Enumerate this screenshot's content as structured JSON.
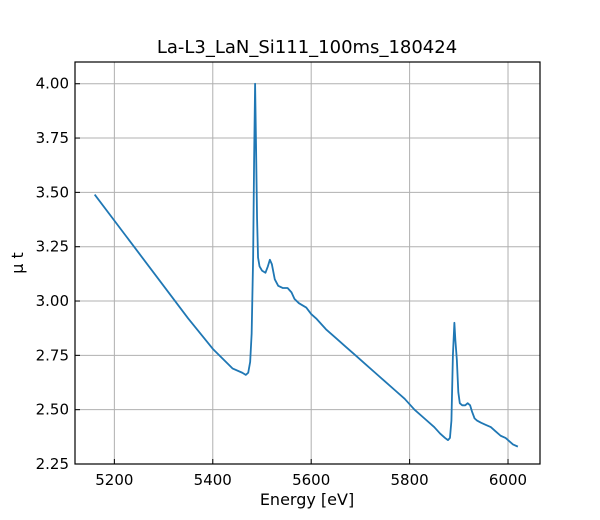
{
  "chart_data": {
    "type": "line",
    "title": "La-L3_LaN_Si111_100ms_180424",
    "xlabel": "Energy [eV]",
    "ylabel": "μ t",
    "xlim": [
      5120,
      6065
    ],
    "ylim": [
      2.25,
      4.1
    ],
    "xticks": [
      5200,
      5400,
      5600,
      5800,
      6000
    ],
    "yticks": [
      2.25,
      2.5,
      2.75,
      3.0,
      3.25,
      3.5,
      3.75,
      4.0
    ],
    "xtick_labels": [
      "5200",
      "5400",
      "5600",
      "5800",
      "6000"
    ],
    "ytick_labels": [
      "2.25",
      "2.50",
      "2.75",
      "3.00",
      "3.25",
      "3.50",
      "3.75",
      "4.00"
    ],
    "grid": true,
    "line_color": "#1f77b4",
    "series": [
      {
        "x": [
          5160,
          5200,
          5250,
          5300,
          5350,
          5400,
          5440,
          5460,
          5467,
          5472,
          5476,
          5479,
          5482,
          5484,
          5486,
          5488,
          5490,
          5492,
          5495,
          5500,
          5507,
          5512,
          5516,
          5520,
          5526,
          5533,
          5542,
          5552,
          5560,
          5566,
          5575,
          5590,
          5600,
          5610,
          5630,
          5650,
          5670,
          5690,
          5710,
          5730,
          5750,
          5770,
          5790,
          5810,
          5830,
          5850,
          5862,
          5872,
          5878,
          5882,
          5885,
          5888,
          5891,
          5893,
          5896,
          5899,
          5902,
          5907,
          5913,
          5918,
          5923,
          5927,
          5932,
          5937,
          5945,
          5955,
          5965,
          5975,
          5985,
          5995,
          6010,
          6020
        ],
        "y": [
          3.49,
          3.37,
          3.22,
          3.07,
          2.92,
          2.78,
          2.69,
          2.67,
          2.66,
          2.67,
          2.72,
          2.85,
          3.2,
          3.65,
          4.0,
          3.7,
          3.38,
          3.2,
          3.16,
          3.14,
          3.13,
          3.16,
          3.19,
          3.17,
          3.1,
          3.07,
          3.06,
          3.06,
          3.04,
          3.01,
          2.99,
          2.97,
          2.94,
          2.92,
          2.87,
          2.83,
          2.79,
          2.75,
          2.71,
          2.67,
          2.63,
          2.59,
          2.55,
          2.5,
          2.46,
          2.42,
          2.39,
          2.37,
          2.36,
          2.37,
          2.45,
          2.75,
          2.9,
          2.82,
          2.73,
          2.58,
          2.53,
          2.52,
          2.52,
          2.53,
          2.52,
          2.49,
          2.46,
          2.45,
          2.44,
          2.43,
          2.42,
          2.4,
          2.38,
          2.37,
          2.34,
          2.33
        ]
      }
    ]
  }
}
